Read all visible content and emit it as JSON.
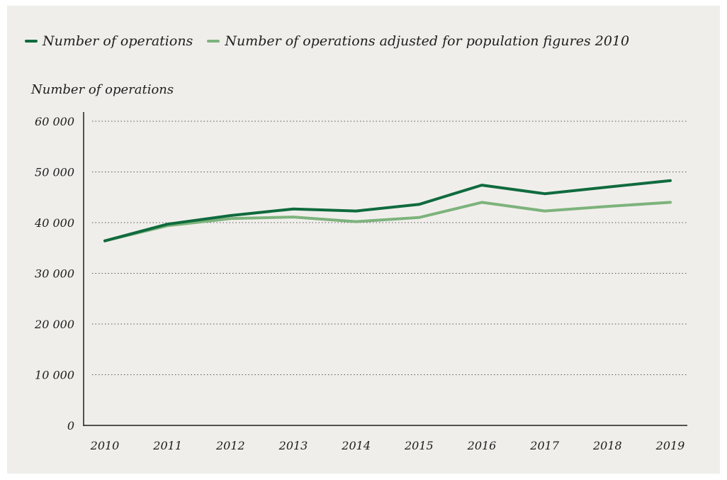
{
  "chart_data": {
    "type": "line",
    "title": "",
    "xlabel": "",
    "ylabel": "Number of operations",
    "x": [
      "2010",
      "2011",
      "2012",
      "2013",
      "2014",
      "2015",
      "2016",
      "2017",
      "2018",
      "2019"
    ],
    "ylim": [
      0,
      60000
    ],
    "yticks": [
      0,
      10000,
      20000,
      30000,
      40000,
      50000,
      60000
    ],
    "ytick_labels": [
      "0",
      "10 000",
      "20 000",
      "30 000",
      "40 000",
      "50 000",
      "60 000"
    ],
    "grid": "horizontal dotted",
    "legend_position": "top-left",
    "series": [
      {
        "name": "Number of operations",
        "color": "#0f6b3e",
        "values": [
          36400,
          39700,
          41400,
          42700,
          42300,
          43600,
          47400,
          45700,
          47000,
          48300
        ]
      },
      {
        "name": "Number of operations adjusted for population figures 2010",
        "color": "#7db37c",
        "values": [
          36400,
          39400,
          40800,
          41100,
          40200,
          41000,
          44000,
          42300,
          43200,
          44000
        ]
      }
    ]
  }
}
